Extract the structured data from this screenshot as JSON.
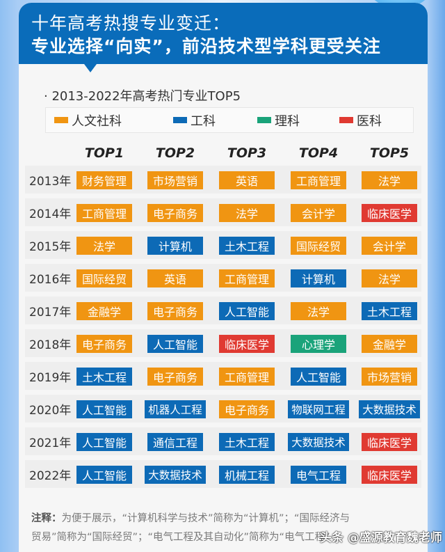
{
  "header": {
    "title_line1": "十年高考热搜专业变迁：",
    "title_line2": "专业选择“向实”，前沿技术型学科更受关注"
  },
  "colors": {
    "header_bg": "#0a6cba",
    "humanities": "#f09512",
    "engineering": "#0d6ab6",
    "science": "#1aa37a",
    "medicine": "#e03a32"
  },
  "chart_data": {
    "type": "table",
    "title": "2013-2022年高考热门专业TOP5",
    "legend": [
      {
        "key": "humanities",
        "label": "人文社科",
        "color": "#f09512"
      },
      {
        "key": "engineering",
        "label": "工科",
        "color": "#0d6ab6"
      },
      {
        "key": "science",
        "label": "理科",
        "color": "#1aa37a"
      },
      {
        "key": "medicine",
        "label": "医科",
        "color": "#e03a32"
      }
    ],
    "columns": [
      "TOP1",
      "TOP2",
      "TOP3",
      "TOP4",
      "TOP5"
    ],
    "rows": [
      {
        "year": "2013年",
        "items": [
          {
            "name": "财务管理",
            "cat": "humanities"
          },
          {
            "name": "市场营销",
            "cat": "humanities"
          },
          {
            "name": "英语",
            "cat": "humanities"
          },
          {
            "name": "工商管理",
            "cat": "humanities"
          },
          {
            "name": "法学",
            "cat": "humanities"
          }
        ]
      },
      {
        "year": "2014年",
        "items": [
          {
            "name": "工商管理",
            "cat": "humanities"
          },
          {
            "name": "电子商务",
            "cat": "humanities"
          },
          {
            "name": "法学",
            "cat": "humanities"
          },
          {
            "name": "会计学",
            "cat": "humanities"
          },
          {
            "name": "临床医学",
            "cat": "medicine"
          }
        ]
      },
      {
        "year": "2015年",
        "items": [
          {
            "name": "法学",
            "cat": "humanities"
          },
          {
            "name": "计算机",
            "cat": "engineering"
          },
          {
            "name": "土木工程",
            "cat": "engineering"
          },
          {
            "name": "国际经贸",
            "cat": "humanities"
          },
          {
            "name": "会计学",
            "cat": "humanities"
          }
        ]
      },
      {
        "year": "2016年",
        "items": [
          {
            "name": "国际经贸",
            "cat": "humanities"
          },
          {
            "name": "英语",
            "cat": "humanities"
          },
          {
            "name": "工商管理",
            "cat": "humanities"
          },
          {
            "name": "计算机",
            "cat": "engineering"
          },
          {
            "name": "法学",
            "cat": "humanities"
          }
        ]
      },
      {
        "year": "2017年",
        "items": [
          {
            "name": "金融学",
            "cat": "humanities"
          },
          {
            "name": "电子商务",
            "cat": "humanities"
          },
          {
            "name": "人工智能",
            "cat": "engineering"
          },
          {
            "name": "法学",
            "cat": "humanities"
          },
          {
            "name": "土木工程",
            "cat": "engineering"
          }
        ]
      },
      {
        "year": "2018年",
        "items": [
          {
            "name": "电子商务",
            "cat": "humanities"
          },
          {
            "name": "人工智能",
            "cat": "engineering"
          },
          {
            "name": "临床医学",
            "cat": "medicine"
          },
          {
            "name": "心理学",
            "cat": "science"
          },
          {
            "name": "金融学",
            "cat": "humanities"
          }
        ]
      },
      {
        "year": "2019年",
        "items": [
          {
            "name": "土木工程",
            "cat": "engineering"
          },
          {
            "name": "电子商务",
            "cat": "humanities"
          },
          {
            "name": "工商管理",
            "cat": "humanities"
          },
          {
            "name": "人工智能",
            "cat": "engineering"
          },
          {
            "name": "市场营销",
            "cat": "humanities"
          }
        ]
      },
      {
        "year": "2020年",
        "items": [
          {
            "name": "人工智能",
            "cat": "engineering"
          },
          {
            "name": "机器人工程",
            "cat": "engineering"
          },
          {
            "name": "电子商务",
            "cat": "humanities"
          },
          {
            "name": "物联网工程",
            "cat": "engineering"
          },
          {
            "name": "大数据技术",
            "cat": "engineering"
          }
        ]
      },
      {
        "year": "2021年",
        "items": [
          {
            "name": "人工智能",
            "cat": "engineering"
          },
          {
            "name": "通信工程",
            "cat": "engineering"
          },
          {
            "name": "土木工程",
            "cat": "engineering"
          },
          {
            "name": "大数据技术",
            "cat": "engineering"
          },
          {
            "name": "临床医学",
            "cat": "medicine"
          }
        ]
      },
      {
        "year": "2022年",
        "items": [
          {
            "name": "人工智能",
            "cat": "engineering"
          },
          {
            "name": "大数据技术",
            "cat": "engineering"
          },
          {
            "name": "机械工程",
            "cat": "engineering"
          },
          {
            "name": "电气工程",
            "cat": "engineering"
          },
          {
            "name": "临床医学",
            "cat": "medicine"
          }
        ]
      }
    ]
  },
  "subtitle": "· 2013-2022年高考热门专业TOP5",
  "note": {
    "label": "注释：",
    "text_line1": "为便于展示，“计算机科学与技术”简称为“计算机”；“国际经济与",
    "text_line2": "贸易”简称为“国际经贸”；“电气工程及其自动化”简称为“电气工程”"
  },
  "watermark": "头条 @盛源教育魏老师"
}
